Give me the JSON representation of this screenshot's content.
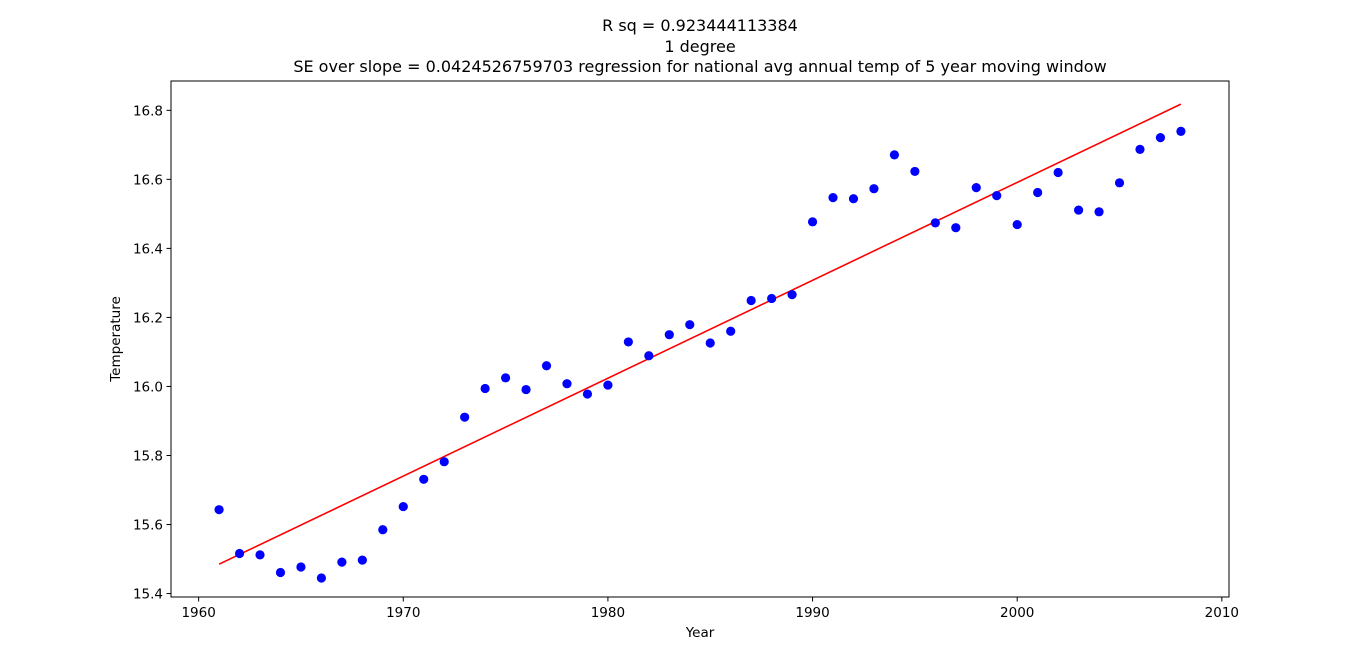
{
  "chart_data": {
    "type": "scatter",
    "title_lines": [
      "R sq = 0.923444113384",
      "1 degree",
      "SE over slope = 0.0424526759703 regression for national avg annual temp of 5 year moving window"
    ],
    "xlabel": "Year",
    "ylabel": "Temperature",
    "xlim": [
      1958.65,
      2010.35
    ],
    "ylim": [
      15.39,
      16.885
    ],
    "x_ticks": [
      "1960",
      "1970",
      "1980",
      "1990",
      "2000",
      "2010"
    ],
    "y_ticks": [
      "15.4",
      "15.6",
      "15.8",
      "16.0",
      "16.2",
      "16.4",
      "16.6",
      "16.8"
    ],
    "grid": false,
    "series": [
      {
        "kind": "points",
        "color": "#0000ff",
        "x": [
          1961,
          1962,
          1963,
          1964,
          1965,
          1966,
          1967,
          1968,
          1969,
          1970,
          1971,
          1972,
          1973,
          1974,
          1975,
          1976,
          1977,
          1978,
          1979,
          1980,
          1981,
          1982,
          1983,
          1984,
          1985,
          1986,
          1987,
          1988,
          1989,
          1990,
          1991,
          1992,
          1993,
          1994,
          1995,
          1996,
          1997,
          1998,
          1999,
          2000,
          2001,
          2002,
          2003,
          2004,
          2005,
          2006,
          2007,
          2008
        ],
        "y": [
          15.643,
          15.516,
          15.512,
          15.461,
          15.477,
          15.445,
          15.491,
          15.497,
          15.585,
          15.652,
          15.731,
          15.782,
          15.911,
          15.994,
          16.025,
          15.991,
          16.06,
          16.008,
          15.978,
          16.004,
          16.129,
          16.089,
          16.15,
          16.179,
          16.126,
          16.16,
          16.249,
          16.255,
          16.266,
          16.477,
          16.547,
          16.544,
          16.573,
          16.671,
          16.623,
          16.474,
          16.46,
          16.576,
          16.553,
          16.469,
          16.562,
          16.62,
          16.511,
          16.506,
          16.59,
          16.687,
          16.721,
          16.739
        ]
      },
      {
        "kind": "fit-line",
        "color": "#ff0000",
        "x": [
          1961,
          2008
        ],
        "y": [
          15.485,
          16.818
        ]
      }
    ]
  }
}
